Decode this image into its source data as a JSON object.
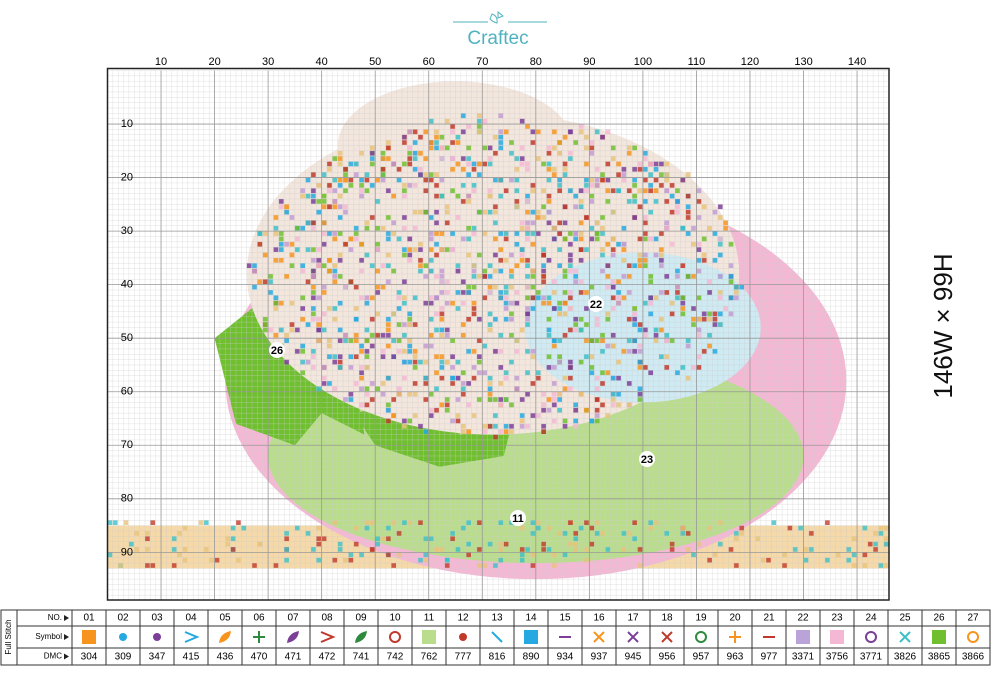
{
  "header": {
    "brand": "Craftec"
  },
  "size": "146W × 99H",
  "grid": {
    "xticks": [
      10,
      20,
      30,
      40,
      50,
      60,
      70,
      80,
      90,
      100,
      110,
      120,
      130,
      140
    ],
    "yticks": [
      10,
      20,
      30,
      40,
      50,
      60,
      70,
      80,
      90
    ]
  },
  "regions": [
    {
      "label": "26"
    },
    {
      "label": "22"
    },
    {
      "label": "23"
    },
    {
      "label": "11"
    }
  ],
  "legend": {
    "title": "Full Stitch",
    "row_labels": [
      "NO.",
      "Symbol",
      "DMC"
    ],
    "items": [
      {
        "no": "01",
        "dmc": 304
      },
      {
        "no": "02",
        "dmc": 309
      },
      {
        "no": "03",
        "dmc": 347
      },
      {
        "no": "04",
        "dmc": 415
      },
      {
        "no": "05",
        "dmc": 436
      },
      {
        "no": "06",
        "dmc": 470
      },
      {
        "no": "07",
        "dmc": 471
      },
      {
        "no": "08",
        "dmc": 472
      },
      {
        "no": "09",
        "dmc": 741
      },
      {
        "no": "10",
        "dmc": 742
      },
      {
        "no": "11",
        "dmc": 762
      },
      {
        "no": "12",
        "dmc": 777
      },
      {
        "no": "13",
        "dmc": 816
      },
      {
        "no": "14",
        "dmc": 890
      },
      {
        "no": "15",
        "dmc": 934
      },
      {
        "no": "16",
        "dmc": 937
      },
      {
        "no": "17",
        "dmc": 945
      },
      {
        "no": "18",
        "dmc": 956
      },
      {
        "no": "19",
        "dmc": 957
      },
      {
        "no": "20",
        "dmc": 963
      },
      {
        "no": "21",
        "dmc": 977
      },
      {
        "no": "22",
        "dmc": 3371
      },
      {
        "no": "23",
        "dmc": 3756
      },
      {
        "no": "24",
        "dmc": 3771
      },
      {
        "no": "25",
        "dmc": 3826
      },
      {
        "no": "26",
        "dmc": 3865
      },
      {
        "no": "27",
        "dmc": 3866
      }
    ]
  }
}
